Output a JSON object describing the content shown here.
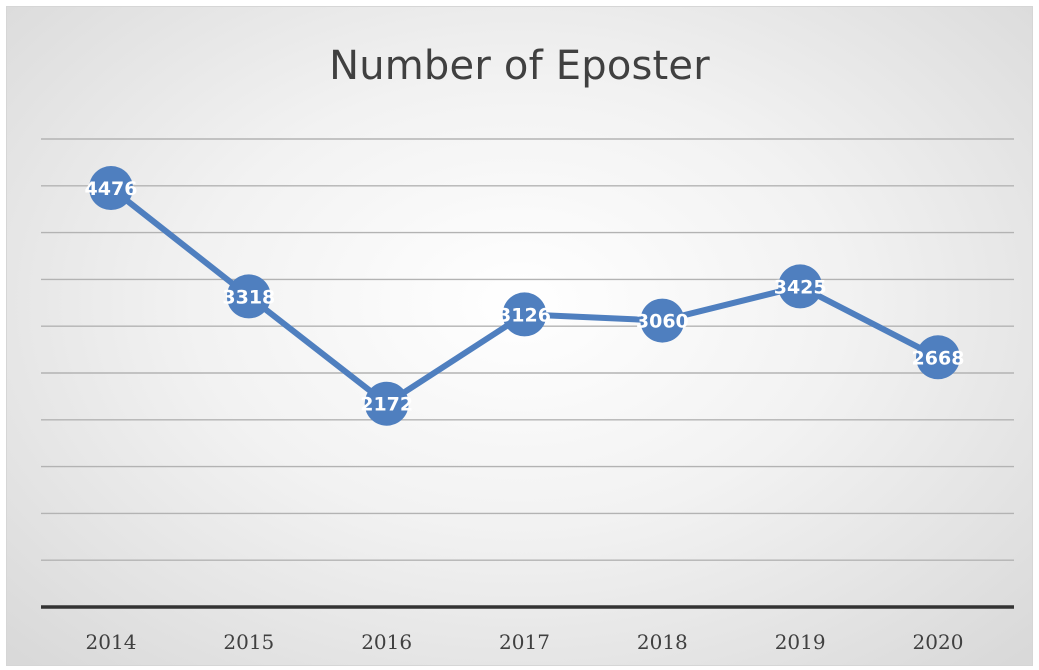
{
  "chart_data": {
    "type": "line",
    "title": "Number of Eposter",
    "categories": [
      "2014",
      "2015",
      "2016",
      "2017",
      "2018",
      "2019",
      "2020"
    ],
    "series": [
      {
        "values": [
          4476,
          3318,
          2172,
          3126,
          3060,
          3425,
          2668
        ]
      }
    ],
    "ylim": [
      0,
      5000
    ],
    "y_gridline_step": 500,
    "grid": true,
    "legend": "none",
    "line_color": "#4f7fbf",
    "marker_color": "#4f7fbf",
    "data_label_color": "#ffffff"
  }
}
